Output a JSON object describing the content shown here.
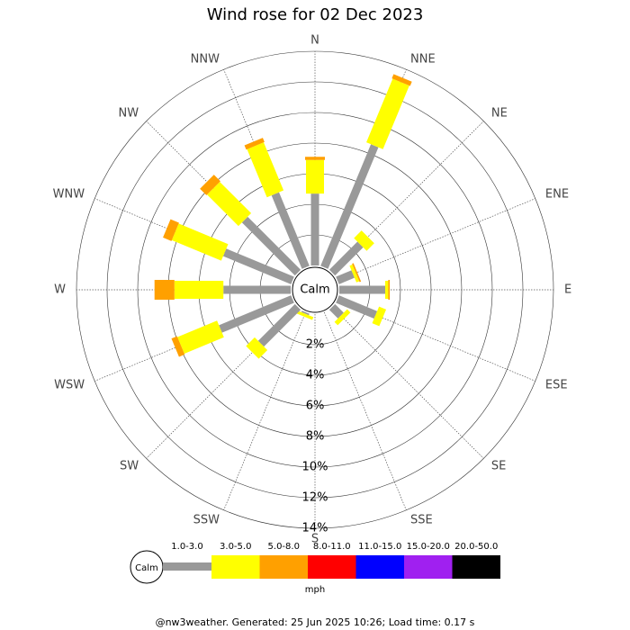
{
  "chart_data": {
    "type": "windrose",
    "title": "Wind rose for 02 Dec 2023",
    "directions": [
      "N",
      "NNE",
      "NE",
      "ENE",
      "E",
      "ESE",
      "SE",
      "SSE",
      "S",
      "SSW",
      "SW",
      "WSW",
      "W",
      "WNW",
      "NW",
      "NNW"
    ],
    "series": [
      {
        "name": "1.0-3.0",
        "color": "#999999",
        "values": [
          4.7,
          8.6,
          2.6,
          1.1,
          3.0,
          2.7,
          0.8,
          0,
          0,
          0.1,
          3.4,
          5.1,
          4.4,
          4.8,
          4.9,
          5.2
        ]
      },
      {
        "name": "3.0-5.0",
        "color": "#ffff00",
        "values": [
          2.2,
          4.5,
          0.7,
          0.2,
          0.2,
          0.5,
          0.3,
          0,
          0,
          0.2,
          0.8,
          2.8,
          3.2,
          3.5,
          2.9,
          3.4
        ]
      },
      {
        "name": "5.0-8.0",
        "color": "#ffa000",
        "values": [
          0.2,
          0.3,
          0,
          0.1,
          0.1,
          0,
          0,
          0,
          0,
          0,
          0,
          0.4,
          1.3,
          0.6,
          0.6,
          0.3
        ]
      },
      {
        "name": "8.0-11.0",
        "color": "#ff0000",
        "values": [
          0,
          0,
          0,
          0,
          0,
          0,
          0,
          0,
          0,
          0,
          0,
          0,
          0,
          0,
          0,
          0
        ]
      },
      {
        "name": "11.0-15.0",
        "color": "#0000ff",
        "values": [
          0,
          0,
          0,
          0,
          0,
          0,
          0,
          0,
          0,
          0,
          0,
          0,
          0,
          0,
          0,
          0
        ]
      },
      {
        "name": "15.0-20.0",
        "color": "#a020f0",
        "values": [
          0,
          0,
          0,
          0,
          0,
          0,
          0,
          0,
          0,
          0,
          0,
          0,
          0,
          0,
          0,
          0
        ]
      },
      {
        "name": "20.0-50.0",
        "color": "#000000",
        "values": [
          0,
          0,
          0,
          0,
          0,
          0,
          0,
          0,
          0,
          0,
          0,
          0,
          0,
          0,
          0,
          0
        ]
      }
    ],
    "rlim": [
      0,
      14
    ],
    "rticks": [
      {
        "value": 2,
        "label": "2%"
      },
      {
        "value": 4,
        "label": "4%"
      },
      {
        "value": 6,
        "label": "6%"
      },
      {
        "value": 8,
        "label": "8%"
      },
      {
        "value": 10,
        "label": "10%"
      },
      {
        "value": 12,
        "label": "12%"
      },
      {
        "value": 14,
        "label": "14%"
      }
    ],
    "calm_label": "Calm",
    "unit_label": "mph",
    "footer": "@nw3weather. Generated: 25 Jun 2025 10:26; Load time: 0.17 s"
  }
}
